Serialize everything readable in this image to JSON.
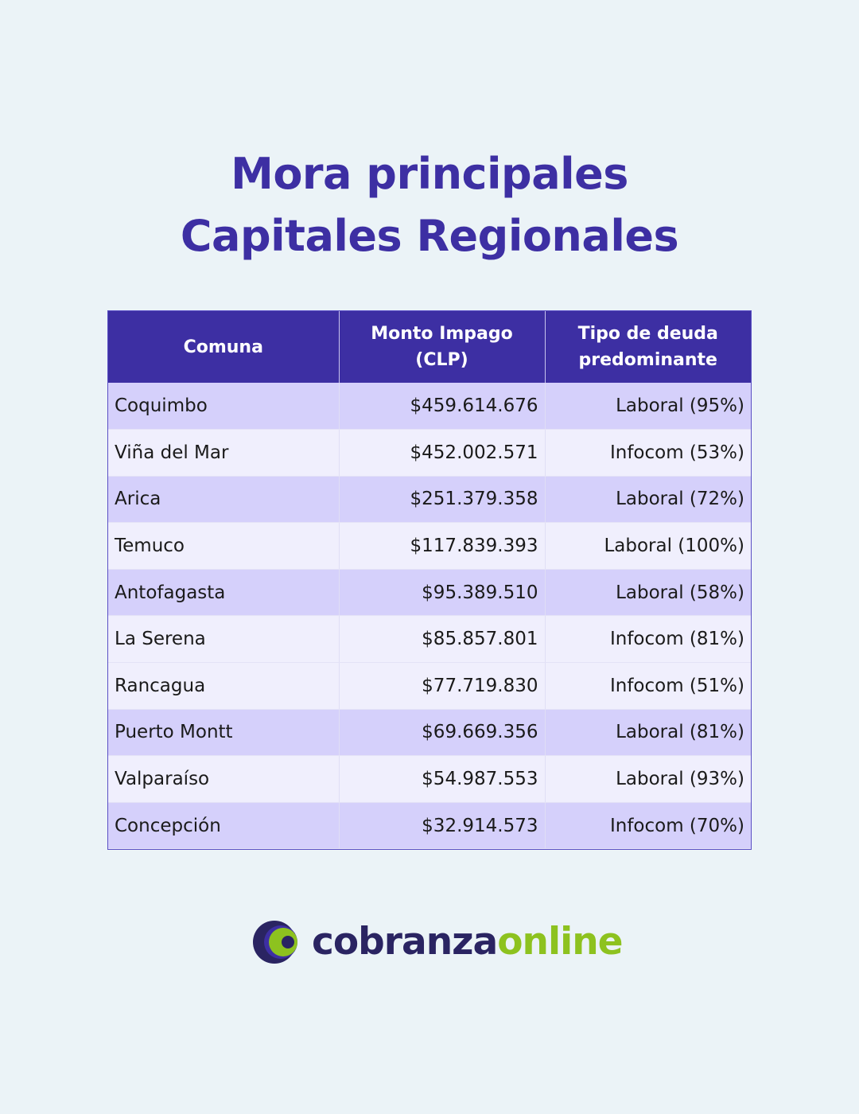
{
  "title": {
    "line1": "Mora principales",
    "line2": "Capitales Regionales"
  },
  "table": {
    "headers": [
      "Comuna",
      "Monto Impago (CLP)",
      "Tipo de deuda predominante"
    ],
    "rows": [
      {
        "comuna": "Coquimbo",
        "monto": "$459.614.676",
        "tipo": "Laboral (95%)"
      },
      {
        "comuna": "Viña del Mar",
        "monto": "$452.002.571",
        "tipo": "Infocom (53%)"
      },
      {
        "comuna": "Arica",
        "monto": "$251.379.358",
        "tipo": "Laboral (72%)"
      },
      {
        "comuna": "Temuco",
        "monto": "$117.839.393",
        "tipo": "Laboral (100%)"
      },
      {
        "comuna": "Antofagasta",
        "monto": "$95.389.510",
        "tipo": "Laboral (58%)"
      },
      {
        "comuna": "La Serena",
        "monto": "$85.857.801",
        "tipo": "Infocom (81%)"
      },
      {
        "comuna": "Rancagua",
        "monto": "$77.719.830",
        "tipo": "Infocom (51%)"
      },
      {
        "comuna": "Puerto Montt",
        "monto": "$69.669.356",
        "tipo": "Laboral (81%)"
      },
      {
        "comuna": "Valparaíso",
        "monto": "$54.987.553",
        "tipo": "Laboral (93%)"
      },
      {
        "comuna": "Concepción",
        "monto": "$32.914.573",
        "tipo": "Infocom (70%)"
      }
    ]
  },
  "logo": {
    "icon": "cobranza-c-logo-icon",
    "brand_part1": "cobranza",
    "brand_part2": "online",
    "colors": {
      "dark": "#2a2462",
      "green": "#8dc21f"
    }
  },
  "colors": {
    "background": "#ebf3f7",
    "title": "#3d2fa3",
    "header_bg": "#3d2fa3",
    "row_dark": "#d5d0fb",
    "row_light": "#f0effd"
  }
}
